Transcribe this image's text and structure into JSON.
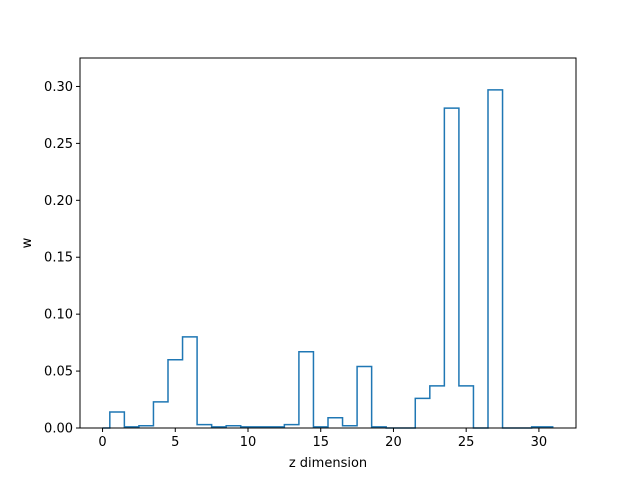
{
  "chart_data": {
    "type": "line",
    "style": "steps-mid",
    "xlabel": "z dimension",
    "ylabel": "w",
    "xlim": [
      -1.55,
      32.55
    ],
    "ylim": [
      0,
      0.325
    ],
    "xticks": [
      0,
      5,
      10,
      15,
      20,
      25,
      30
    ],
    "xtick_labels": [
      "0",
      "5",
      "10",
      "15",
      "20",
      "25",
      "30"
    ],
    "yticks": [
      0.0,
      0.05,
      0.1,
      0.15,
      0.2,
      0.25,
      0.3
    ],
    "ytick_labels": [
      "0.00",
      "0.05",
      "0.10",
      "0.15",
      "0.20",
      "0.25",
      "0.30"
    ],
    "grid": false,
    "line_color": "#1f77b4",
    "x": [
      0,
      1,
      2,
      3,
      4,
      5,
      6,
      7,
      8,
      9,
      10,
      11,
      12,
      13,
      14,
      15,
      16,
      17,
      18,
      19,
      20,
      21,
      22,
      23,
      24,
      25,
      26,
      27,
      28,
      29,
      30,
      31
    ],
    "y": [
      0.0,
      0.014,
      0.001,
      0.002,
      0.023,
      0.06,
      0.08,
      0.003,
      0.001,
      0.002,
      0.001,
      0.001,
      0.001,
      0.003,
      0.067,
      0.001,
      0.009,
      0.002,
      0.054,
      0.001,
      0.0,
      0.0,
      0.026,
      0.037,
      0.281,
      0.037,
      0.0,
      0.297,
      0.0,
      0.0,
      0.001,
      0.001
    ]
  }
}
